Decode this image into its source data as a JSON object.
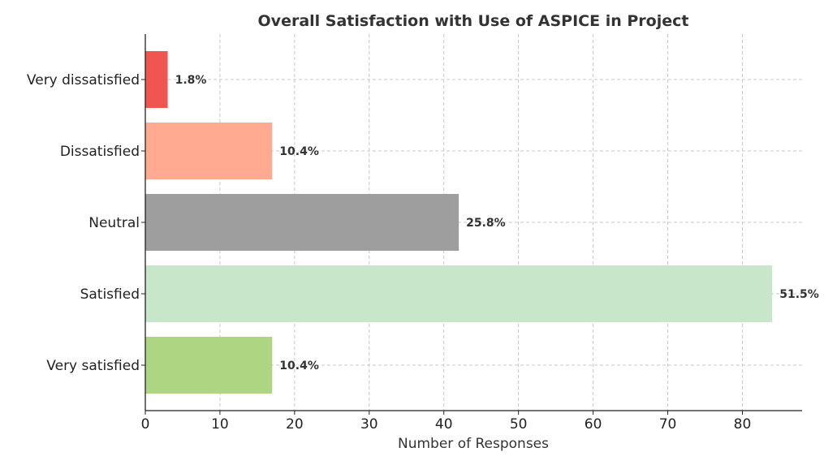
{
  "chart_data": {
    "type": "bar",
    "orientation": "horizontal",
    "title": "Overall Satisfaction with Use of ASPICE in Project",
    "xlabel": "Number of Responses",
    "ylabel": "",
    "xlim": [
      0,
      88
    ],
    "xticks": [
      0,
      10,
      20,
      30,
      40,
      50,
      60,
      70,
      80
    ],
    "grid": true,
    "categories": [
      "Very dissatisfied",
      "Dissatisfied",
      "Neutral",
      "Satisfied",
      "Very satisfied"
    ],
    "values": [
      3,
      17,
      42,
      84,
      17
    ],
    "data_labels": [
      "1.8%",
      "10.4%",
      "25.8%",
      "51.5%",
      "10.4%"
    ],
    "colors": [
      "#f0554f",
      "#ffaa91",
      "#9e9e9e",
      "#c8e6c9",
      "#aed581"
    ]
  }
}
